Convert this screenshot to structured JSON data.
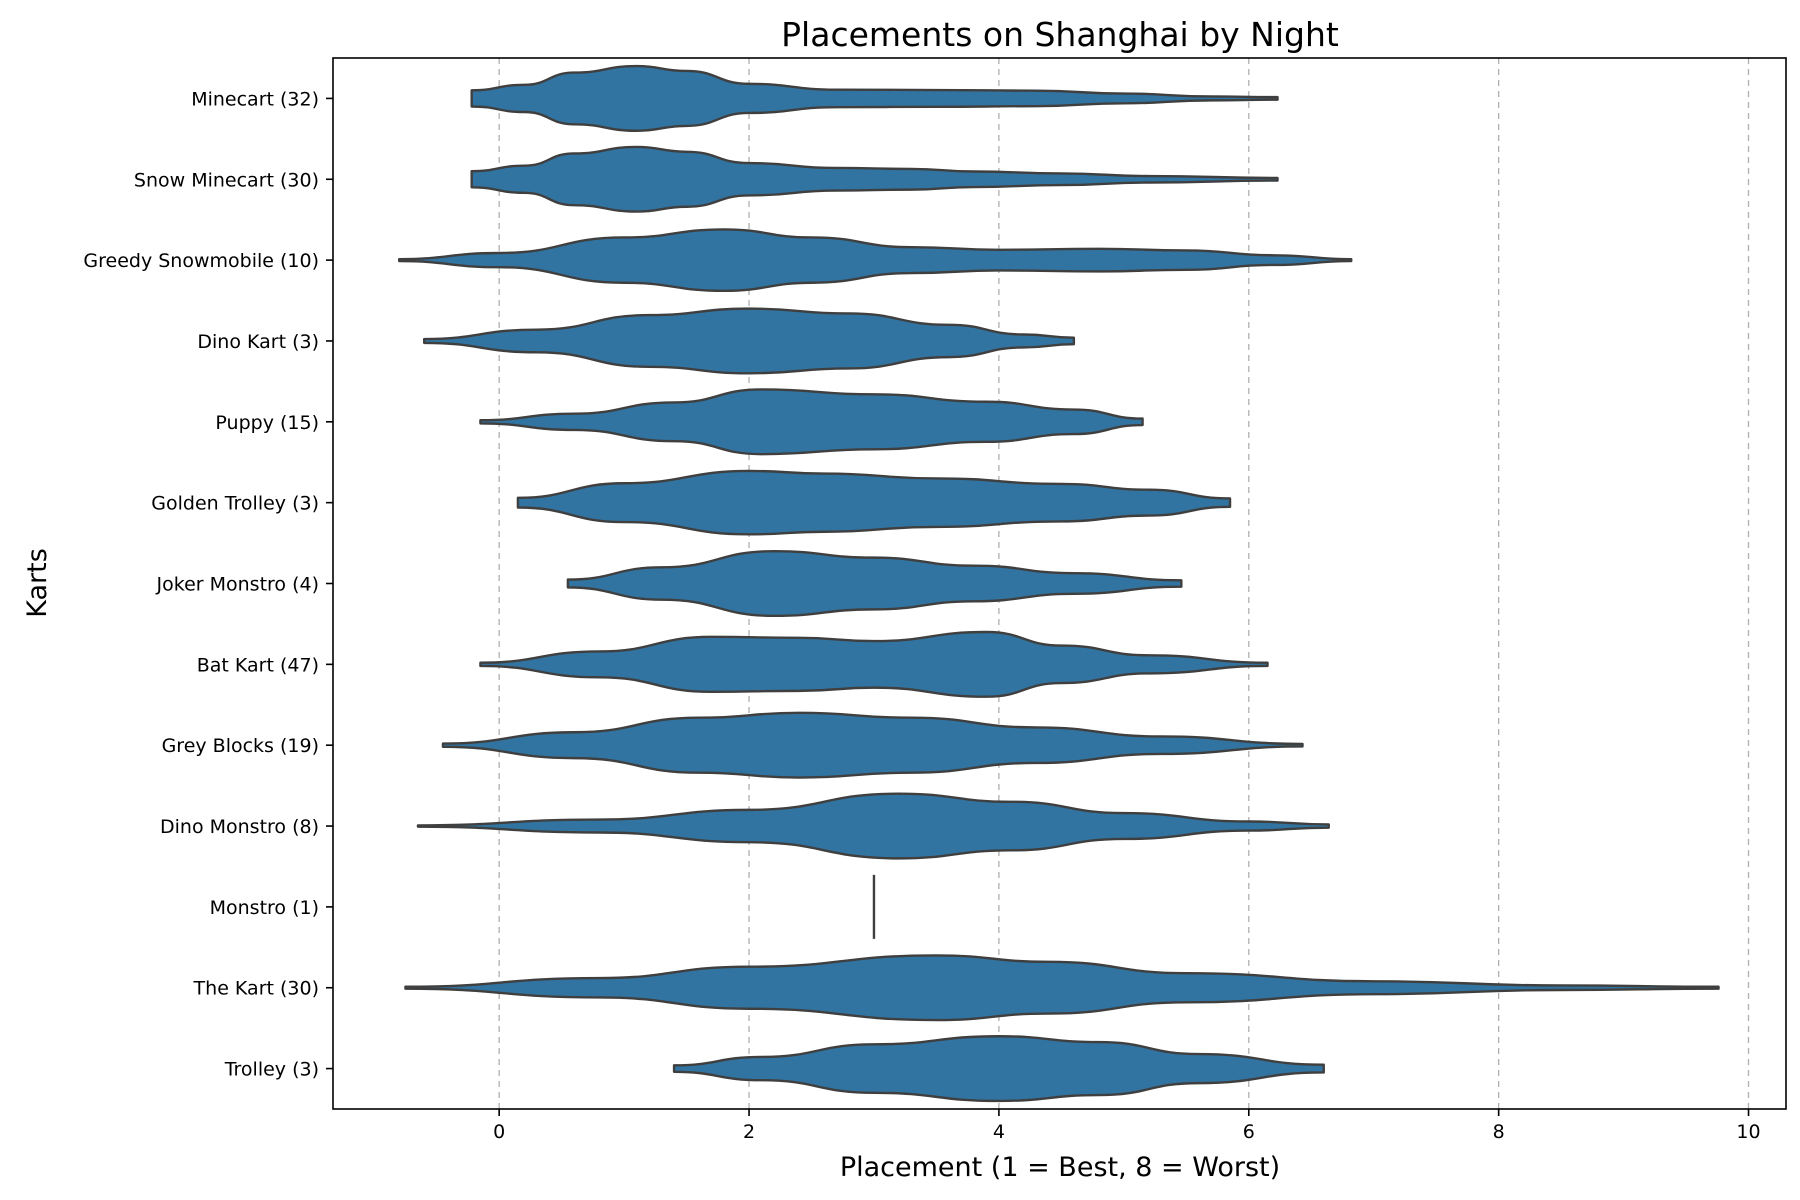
{
  "chart_data": {
    "type": "violin",
    "orientation": "horizontal",
    "title": "Placements on Shanghai by Night",
    "xlabel": "Placement (1 = Best, 8 = Worst)",
    "ylabel": "Karts",
    "xlim": [
      -1.33,
      10.3
    ],
    "xticks": [
      0,
      2,
      4,
      6,
      8,
      10
    ],
    "grid": "x-only, dashed",
    "color": "#3274a1",
    "edge_color": "#3f3f3f",
    "series": [
      {
        "label": "Minecart (32)",
        "profile": [
          [
            -0.22,
            0.25
          ],
          [
            0.2,
            0.42
          ],
          [
            0.6,
            0.8
          ],
          [
            1.1,
            1.0
          ],
          [
            1.5,
            0.85
          ],
          [
            2.0,
            0.45
          ],
          [
            2.7,
            0.27
          ],
          [
            3.5,
            0.26
          ],
          [
            4.3,
            0.24
          ],
          [
            5.0,
            0.15
          ],
          [
            5.7,
            0.06
          ],
          [
            6.23,
            0.04
          ]
        ]
      },
      {
        "label": "Snow Minecart (30)",
        "profile": [
          [
            -0.22,
            0.25
          ],
          [
            0.2,
            0.42
          ],
          [
            0.6,
            0.8
          ],
          [
            1.1,
            1.0
          ],
          [
            1.5,
            0.85
          ],
          [
            2.0,
            0.5
          ],
          [
            2.7,
            0.35
          ],
          [
            3.3,
            0.32
          ],
          [
            3.8,
            0.24
          ],
          [
            4.5,
            0.18
          ],
          [
            5.2,
            0.1
          ],
          [
            6.23,
            0.04
          ]
        ]
      },
      {
        "label": "Greedy Snowmobile (10)",
        "profile": [
          [
            -0.8,
            0.03
          ],
          [
            0.0,
            0.22
          ],
          [
            1.0,
            0.7
          ],
          [
            1.8,
            0.95
          ],
          [
            2.5,
            0.7
          ],
          [
            3.3,
            0.4
          ],
          [
            4.0,
            0.32
          ],
          [
            4.8,
            0.35
          ],
          [
            5.5,
            0.3
          ],
          [
            6.2,
            0.15
          ],
          [
            6.82,
            0.03
          ]
        ]
      },
      {
        "label": "Dino Kart (3)",
        "profile": [
          [
            -0.6,
            0.06
          ],
          [
            0.3,
            0.35
          ],
          [
            1.2,
            0.8
          ],
          [
            2.0,
            1.0
          ],
          [
            2.8,
            0.85
          ],
          [
            3.6,
            0.5
          ],
          [
            4.2,
            0.2
          ],
          [
            4.6,
            0.1
          ]
        ]
      },
      {
        "label": "Puppy (15)",
        "profile": [
          [
            -0.15,
            0.05
          ],
          [
            0.6,
            0.25
          ],
          [
            1.4,
            0.6
          ],
          [
            2.1,
            1.0
          ],
          [
            3.0,
            0.85
          ],
          [
            3.9,
            0.62
          ],
          [
            4.6,
            0.38
          ],
          [
            5.15,
            0.1
          ]
        ]
      },
      {
        "label": "Golden Trolley (3)",
        "profile": [
          [
            0.15,
            0.15
          ],
          [
            1.0,
            0.6
          ],
          [
            2.0,
            0.98
          ],
          [
            2.6,
            0.9
          ],
          [
            3.5,
            0.75
          ],
          [
            4.5,
            0.58
          ],
          [
            5.2,
            0.4
          ],
          [
            5.85,
            0.13
          ]
        ]
      },
      {
        "label": "Joker Monstro (4)",
        "profile": [
          [
            0.55,
            0.12
          ],
          [
            1.3,
            0.5
          ],
          [
            2.2,
            1.0
          ],
          [
            3.0,
            0.8
          ],
          [
            3.8,
            0.55
          ],
          [
            4.6,
            0.32
          ],
          [
            5.46,
            0.1
          ]
        ]
      },
      {
        "label": "Bat Kart (47)",
        "profile": [
          [
            -0.15,
            0.05
          ],
          [
            0.8,
            0.4
          ],
          [
            1.7,
            0.85
          ],
          [
            2.4,
            0.82
          ],
          [
            3.0,
            0.72
          ],
          [
            3.9,
            1.0
          ],
          [
            4.5,
            0.58
          ],
          [
            5.2,
            0.28
          ],
          [
            6.15,
            0.05
          ]
        ]
      },
      {
        "label": "Grey Blocks (19)",
        "profile": [
          [
            -0.45,
            0.05
          ],
          [
            0.6,
            0.4
          ],
          [
            1.6,
            0.85
          ],
          [
            2.4,
            1.0
          ],
          [
            3.3,
            0.85
          ],
          [
            4.3,
            0.55
          ],
          [
            5.3,
            0.27
          ],
          [
            6.43,
            0.04
          ]
        ]
      },
      {
        "label": "Dino Monstro (8)",
        "profile": [
          [
            -0.65,
            0.02
          ],
          [
            0.8,
            0.2
          ],
          [
            2.0,
            0.5
          ],
          [
            3.2,
            1.0
          ],
          [
            4.1,
            0.75
          ],
          [
            5.0,
            0.4
          ],
          [
            6.0,
            0.14
          ],
          [
            6.64,
            0.05
          ]
        ]
      },
      {
        "label": "Monstro (1)",
        "profile": [
          [
            3.0,
            0.0
          ]
        ]
      },
      {
        "label": "The Kart (30)",
        "profile": [
          [
            -0.75,
            0.03
          ],
          [
            0.8,
            0.3
          ],
          [
            2.0,
            0.65
          ],
          [
            3.5,
            1.0
          ],
          [
            4.4,
            0.8
          ],
          [
            5.5,
            0.45
          ],
          [
            7.0,
            0.2
          ],
          [
            8.5,
            0.07
          ],
          [
            9.76,
            0.03
          ]
        ]
      },
      {
        "label": "Trolley (3)",
        "profile": [
          [
            1.4,
            0.1
          ],
          [
            2.1,
            0.36
          ],
          [
            3.0,
            0.75
          ],
          [
            4.0,
            1.0
          ],
          [
            4.8,
            0.82
          ],
          [
            5.6,
            0.45
          ],
          [
            6.6,
            0.12
          ]
        ]
      }
    ]
  }
}
